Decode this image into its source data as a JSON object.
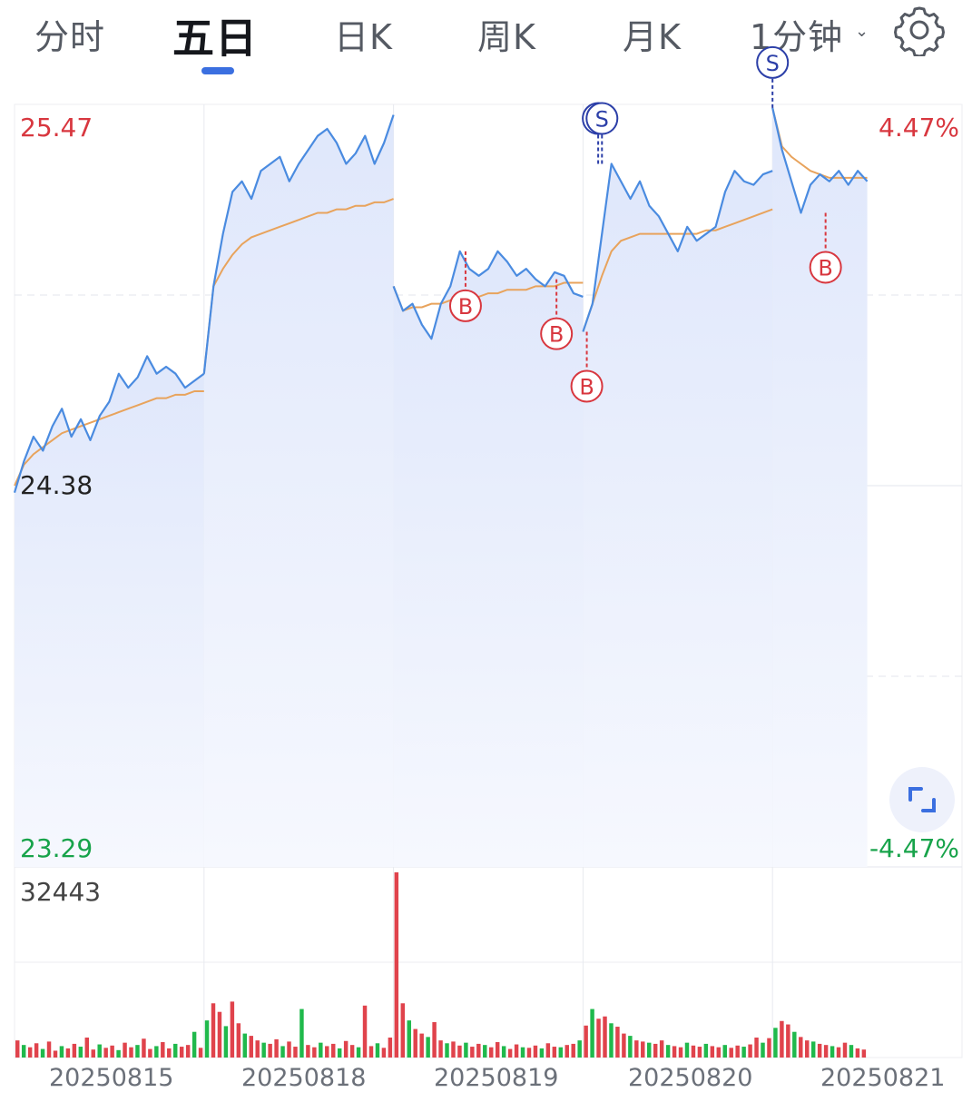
{
  "tabs": [
    {
      "label": "分时",
      "active": false
    },
    {
      "label": "五日",
      "active": true
    },
    {
      "label": "日K",
      "active": false
    },
    {
      "label": "周K",
      "active": false
    },
    {
      "label": "月K",
      "active": false
    },
    {
      "label": "1分钟",
      "active": false
    }
  ],
  "icons": {
    "dropdown": "chevron-down-icon",
    "settings": "gear-icon",
    "fullscreen": "expand-icon"
  },
  "colors": {
    "price_line": "#4a8be0",
    "avg_line": "#e8a35c",
    "up": "#e0434c",
    "down": "#20b94c",
    "buy": "#d8373f",
    "sell": "#2c3fa8"
  },
  "chart_data": {
    "type": "line",
    "ylim": [
      23.29,
      25.47
    ],
    "pct_range": [
      "4.47%",
      "-4.47%"
    ],
    "labels": {
      "y_max": "25.47",
      "y_prev_close": "24.38",
      "y_min": "23.29",
      "pct_max": "4.47%",
      "pct_min": "-4.47%",
      "volume_max": "32443"
    },
    "x_dates": [
      "20250815",
      "20250818",
      "20250819",
      "20250820",
      "20250821"
    ],
    "days": [
      {
        "date": "20250815",
        "price": [
          24.36,
          24.45,
          24.52,
          24.48,
          24.55,
          24.6,
          24.52,
          24.57,
          24.51,
          24.58,
          24.62,
          24.7,
          24.66,
          24.69,
          24.75,
          24.7,
          24.72,
          24.7,
          24.66,
          24.68,
          24.7
        ],
        "avg": [
          24.38,
          24.44,
          24.47,
          24.49,
          24.51,
          24.53,
          24.54,
          24.55,
          24.56,
          24.57,
          24.58,
          24.59,
          24.6,
          24.61,
          24.62,
          24.63,
          24.63,
          24.64,
          24.64,
          24.65,
          24.65
        ]
      },
      {
        "date": "20250818",
        "price": [
          24.7,
          24.95,
          25.1,
          25.22,
          25.25,
          25.2,
          25.28,
          25.3,
          25.32,
          25.25,
          25.3,
          25.34,
          25.38,
          25.4,
          25.36,
          25.3,
          25.33,
          25.38,
          25.3,
          25.36,
          25.44
        ],
        "avg": [
          24.7,
          24.95,
          25.0,
          25.04,
          25.07,
          25.09,
          25.1,
          25.11,
          25.12,
          25.13,
          25.14,
          25.15,
          25.16,
          25.16,
          25.17,
          25.17,
          25.18,
          25.18,
          25.19,
          25.19,
          25.2
        ]
      },
      {
        "date": "20250819",
        "price": [
          24.95,
          24.88,
          24.9,
          24.84,
          24.8,
          24.9,
          24.95,
          25.05,
          25.0,
          24.98,
          25.0,
          25.05,
          25.02,
          24.98,
          25.0,
          24.97,
          24.95,
          24.99,
          24.98,
          24.93,
          24.92
        ],
        "avg": [
          24.95,
          24.88,
          24.89,
          24.89,
          24.9,
          24.9,
          24.91,
          24.91,
          24.92,
          24.92,
          24.93,
          24.93,
          24.94,
          24.94,
          24.94,
          24.95,
          24.95,
          24.95,
          24.96,
          24.96,
          24.96
        ]
      },
      {
        "date": "20250820",
        "price": [
          24.82,
          24.9,
          25.1,
          25.3,
          25.25,
          25.2,
          25.25,
          25.18,
          25.15,
          25.1,
          25.05,
          25.12,
          25.08,
          25.1,
          25.12,
          25.22,
          25.28,
          25.25,
          25.24,
          25.27,
          25.28
        ],
        "avg": [
          24.82,
          24.9,
          24.98,
          25.05,
          25.08,
          25.09,
          25.1,
          25.1,
          25.1,
          25.1,
          25.1,
          25.1,
          25.1,
          25.11,
          25.11,
          25.12,
          25.13,
          25.14,
          25.15,
          25.16,
          25.17
        ]
      },
      {
        "date": "20250821",
        "price": [
          25.46,
          25.34,
          25.25,
          25.16,
          25.24,
          25.27,
          25.25,
          25.28,
          25.24,
          25.28,
          25.25
        ],
        "avg": [
          25.46,
          25.35,
          25.32,
          25.3,
          25.28,
          25.27,
          25.26,
          25.26,
          25.26,
          25.26,
          25.26
        ]
      }
    ],
    "markers": [
      {
        "type": "B",
        "label": "B",
        "day": "20250819",
        "time_frac": 0.38,
        "price": 25.05
      },
      {
        "type": "B",
        "label": "B",
        "day": "20250819",
        "time_frac": 0.86,
        "price": 24.97
      },
      {
        "type": "B",
        "label": "B",
        "day": "20250820",
        "time_frac": 0.02,
        "price": 24.82
      },
      {
        "type": "S",
        "label": "S",
        "day": "20250820",
        "time_frac": 0.08,
        "price": 25.3
      },
      {
        "type": "S",
        "label": "S",
        "day": "20250820",
        "time_frac": 0.1,
        "price": 25.3
      },
      {
        "type": "S",
        "label": "S",
        "day": "20250821",
        "time_frac": 0.0,
        "price": 25.46
      },
      {
        "type": "B",
        "label": "B",
        "day": "20250821",
        "time_frac": 0.28,
        "price": 25.16
      }
    ],
    "volume": {
      "max": 32443,
      "days": [
        {
          "date": "20250815",
          "bars": [
            3000,
            2200,
            1800,
            2500,
            1500,
            2800,
            1200,
            2000,
            1600,
            2400,
            1900,
            3500,
            1400,
            2300,
            1700,
            2100,
            1300,
            2600,
            1800,
            2200,
            3300,
            1500,
            2000,
            2700,
            1600,
            2400,
            1900,
            2200,
            4500,
            1700
          ]
        },
        {
          "date": "20250818",
          "bars": [
            6500,
            9500,
            8000,
            5500,
            9800,
            6000,
            4200,
            3800,
            3000,
            2600,
            2400,
            3200,
            2000,
            2800,
            1900,
            8500,
            2200,
            1800,
            2600,
            2000,
            2400,
            1600,
            2900,
            2200,
            1800,
            9100,
            2000,
            2500,
            1700,
            3500
          ]
        },
        {
          "date": "20250819",
          "bars": [
            32443,
            9500,
            6500,
            5000,
            4200,
            3600,
            6200,
            3000,
            2500,
            2800,
            2100,
            2600,
            1900,
            2400,
            2200,
            1800,
            2700,
            2000,
            1500,
            2300,
            1800,
            1700,
            2100,
            1600,
            2500,
            1900,
            1800,
            2200,
            2400,
            3000
          ]
        },
        {
          "date": "20250820",
          "bars": [
            5600,
            8500,
            6800,
            7200,
            6000,
            5400,
            4200,
            3800,
            3000,
            2800,
            2600,
            2400,
            3000,
            2200,
            2000,
            1800,
            2600,
            2100,
            1900,
            2400,
            2000,
            1800,
            2200,
            1700,
            2100,
            1900,
            2300,
            3500,
            2600,
            3400
          ]
        },
        {
          "date": "20250821",
          "bars": [
            5200,
            6400,
            5800,
            4500,
            3600,
            3000,
            2800,
            2400,
            2200,
            2000,
            1800,
            2600,
            2200,
            1600,
            1400
          ]
        }
      ]
    }
  }
}
